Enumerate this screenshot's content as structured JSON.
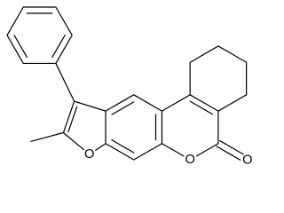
{
  "atoms": [
    "O",
    "O",
    "O"
  ]
}
